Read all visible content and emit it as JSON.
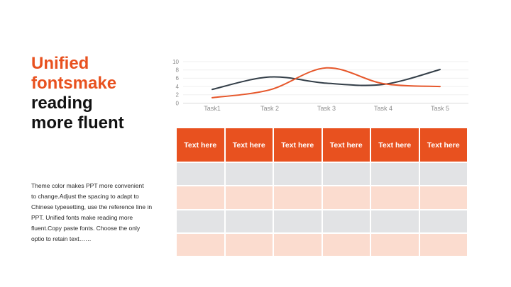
{
  "colors": {
    "accent": "#E8511F",
    "title_dark": "#111111",
    "row_gray": "#E2E3E5",
    "row_peach": "#FBDCCF",
    "grid_line": "#EFEFEF",
    "axis_line": "#D9D9D9",
    "axis_label": "#8C8C8C",
    "body_text": "#262626"
  },
  "title": {
    "lines": [
      {
        "text": "Unified",
        "tone": "accent"
      },
      {
        "text": "fontsmake",
        "tone": "accent"
      },
      {
        "text": "reading",
        "tone": "dark"
      },
      {
        "text": "more fluent",
        "tone": "dark"
      }
    ]
  },
  "description": {
    "lines": [
      "Theme  color makes PPT more convenient",
      "to change.Adjust the spacing to adapt to",
      "Chinese  typesetting, use the reference line in",
      "PPT. Unified  fonts make reading more",
      "fluent.Copy paste fonts. Choose the only",
      "optio to retain text……"
    ]
  },
  "chart_data": {
    "type": "line",
    "categories": [
      "Task1",
      "Task 2",
      "Task 3",
      "Task 4",
      "Task 5"
    ],
    "series": [
      {
        "name": "dark-line",
        "color": "#333E48",
        "values": [
          3.3,
          6.3,
          4.8,
          4.5,
          8.1
        ]
      },
      {
        "name": "orange-line",
        "color": "#E6572B",
        "values": [
          1.3,
          3.2,
          8.5,
          4.7,
          4.0
        ]
      }
    ],
    "title": "",
    "xlabel": "",
    "ylabel": "",
    "ylim": [
      0,
      10
    ],
    "yticks": [
      0,
      2,
      4,
      6,
      8,
      10
    ],
    "grid": true,
    "legend": "none",
    "smooth": true
  },
  "table": {
    "headers": [
      "Text here",
      "Text here",
      "Text here",
      "Text here",
      "Text here",
      "Text here"
    ],
    "rows": [
      [
        "",
        "",
        "",
        "",
        "",
        ""
      ],
      [
        "",
        "",
        "",
        "",
        "",
        ""
      ],
      [
        "",
        "",
        "",
        "",
        "",
        ""
      ],
      [
        "",
        "",
        "",
        "",
        "",
        ""
      ]
    ]
  }
}
